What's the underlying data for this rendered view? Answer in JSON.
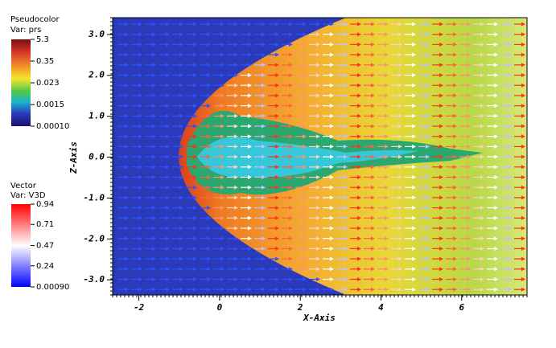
{
  "chart_data": {
    "type": "pseudocolor",
    "xlabel": "X-Axis",
    "ylabel": "Z-Axis",
    "xlim": [
      -2.65,
      7.62
    ],
    "ylim": [
      -3.37,
      3.41
    ],
    "xticks": [
      -2,
      0,
      2,
      4,
      6
    ],
    "yticks": [
      {
        "value": 3,
        "label": "3.0"
      },
      {
        "value": 2,
        "label": "2.0"
      },
      {
        "value": 1,
        "label": "1.0"
      },
      {
        "value": 0,
        "label": "0.0"
      },
      {
        "value": -1,
        "label": "-1.0"
      },
      {
        "value": -2,
        "label": "-2.0"
      },
      {
        "value": -3,
        "label": "-3.0"
      }
    ],
    "legends": [
      {
        "title": "Pseudocolor",
        "var": "Var: prs",
        "scale": "log",
        "ticks": [
          5.3,
          0.35,
          0.023,
          0.0015,
          {
            "value": 0.0001,
            "label": "0.00010"
          }
        ]
      },
      {
        "title": "Vector",
        "var": "Var: V3D",
        "scale": "linear",
        "ticks": [
          0.94,
          0.71,
          0.47,
          0.24,
          {
            "value": 0.0009,
            "label": "0.00090"
          }
        ]
      }
    ]
  }
}
